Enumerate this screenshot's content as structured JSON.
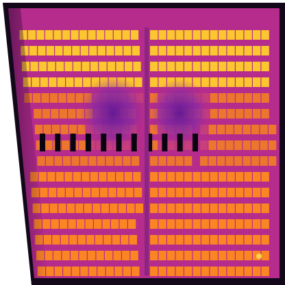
{
  "image": {
    "kind": "thermal-infrared-photo",
    "subject": "solar-panel-array",
    "palette": {
      "background": "#ffffff",
      "frame": "#12081a",
      "base": "#c0308f",
      "warm": "#ff8a1e",
      "hot": "#ffcf2a",
      "cool_blob": "#6a1fa0",
      "slot": "#0a0410"
    },
    "panel_halves": 2,
    "row_groups": [
      "hot-top",
      "middle",
      "warm-bottom"
    ],
    "dark_slot_count": 11
  }
}
